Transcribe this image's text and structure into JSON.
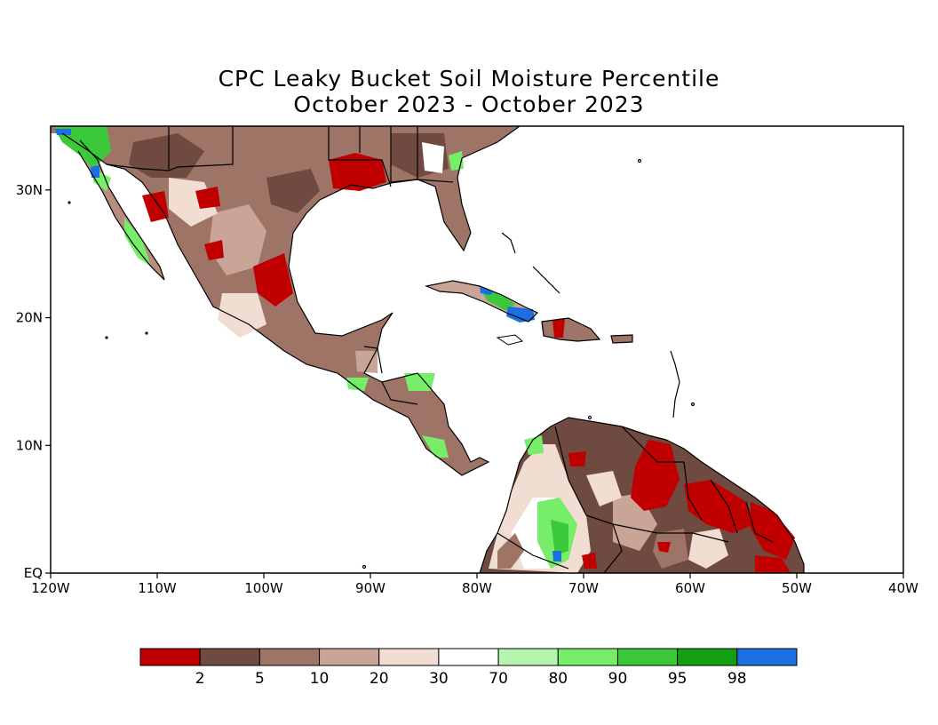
{
  "title": "CPC Leaky Bucket Soil Moisture Percentile",
  "subtitle": "October 2023 - October 2023",
  "axes": {
    "x_ticks": [
      "120W",
      "110W",
      "100W",
      "90W",
      "80W",
      "70W",
      "60W",
      "50W",
      "40W"
    ],
    "y_ticks": [
      "30N",
      "20N",
      "10N",
      "EQ"
    ]
  },
  "legend": {
    "labels": [
      "2",
      "5",
      "10",
      "20",
      "30",
      "70",
      "80",
      "90",
      "95",
      "98"
    ],
    "colors": [
      "#c00000",
      "#6e4a40",
      "#9e7466",
      "#c9a598",
      "#f2ddd3",
      "#ffffff",
      "#b6f5b0",
      "#76ee6a",
      "#3bc83b",
      "#12a012",
      "#1c6fe0"
    ]
  },
  "map": {
    "lon_range": [
      -120,
      -40
    ],
    "lat_range": [
      0,
      35
    ],
    "regions": [
      "Mexico",
      "Southern United States",
      "Central America",
      "Caribbean",
      "Northern South America"
    ]
  }
}
